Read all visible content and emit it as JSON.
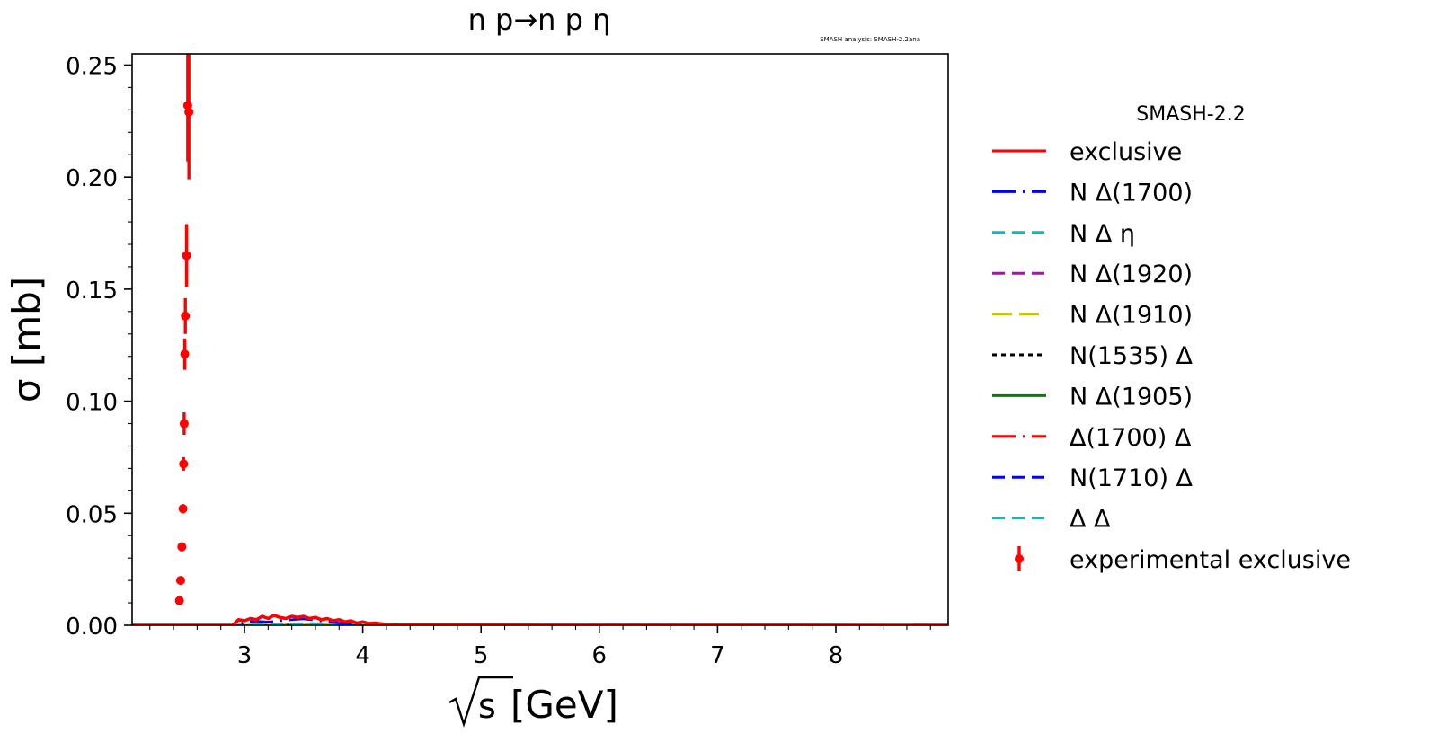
{
  "chart_data": {
    "type": "line",
    "title": "n p→n p η",
    "watermark": "SMASH analysis: SMASH-2.2ana",
    "xlabel_sqrt": "s",
    "xlabel_unit": "[GeV]",
    "ylabel": "σ [mb]",
    "xlim": [
      2.05,
      8.95
    ],
    "ylim": [
      0.0,
      0.255
    ],
    "x_ticks": [
      3,
      4,
      5,
      6,
      7,
      8
    ],
    "x_tick_labels": [
      "3",
      "4",
      "5",
      "6",
      "7",
      "8"
    ],
    "y_ticks": [
      0.0,
      0.05,
      0.1,
      0.15,
      0.2,
      0.25
    ],
    "y_tick_labels": [
      "0.00",
      "0.05",
      "0.10",
      "0.15",
      "0.20",
      "0.25"
    ],
    "legend": {
      "title": "SMASH-2.2",
      "placement": "outside-right"
    },
    "series": [
      {
        "name": "exclusive",
        "color": "#ff0000",
        "dash": "solid",
        "x": [
          2.05,
          2.9,
          2.95,
          3.0,
          3.05,
          3.1,
          3.15,
          3.2,
          3.25,
          3.3,
          3.35,
          3.4,
          3.45,
          3.5,
          3.55,
          3.6,
          3.65,
          3.7,
          3.75,
          3.8,
          3.85,
          3.9,
          3.95,
          4.0,
          4.05,
          4.1,
          4.2,
          4.3,
          8.95
        ],
        "y": [
          0.0,
          0.0,
          0.0025,
          0.002,
          0.003,
          0.0025,
          0.004,
          0.003,
          0.0045,
          0.0035,
          0.003,
          0.004,
          0.0035,
          0.004,
          0.003,
          0.0035,
          0.0025,
          0.003,
          0.002,
          0.0025,
          0.0015,
          0.002,
          0.001,
          0.0015,
          0.0008,
          0.001,
          0.0004,
          0.0001,
          0.0
        ]
      },
      {
        "name": "N Δ(1700)",
        "color": "#0000ff",
        "dash": "long-dash-dot",
        "x": [
          2.05,
          2.95,
          3.0,
          3.1,
          3.2,
          3.3,
          3.4,
          3.5,
          3.6,
          3.7,
          3.8,
          3.9,
          4.0,
          4.1,
          8.95
        ],
        "y": [
          0.0,
          0.0,
          0.0015,
          0.0018,
          0.0015,
          0.002,
          0.0025,
          0.0028,
          0.0022,
          0.0015,
          0.001,
          0.0006,
          0.0003,
          0.0,
          0.0
        ]
      },
      {
        "name": "N Δ η",
        "color": "#00bfbf",
        "dash": "dashed",
        "x": [
          2.05,
          3.0,
          3.3,
          3.6,
          3.9,
          4.5,
          8.95
        ],
        "y": [
          0.0,
          0.0,
          0.0006,
          0.0008,
          0.0005,
          0.0002,
          0.0
        ]
      },
      {
        "name": "N Δ(1920)",
        "color": "#bf00bf",
        "dash": "dashed",
        "x": [
          2.05,
          3.0,
          3.3,
          3.6,
          3.9,
          4.5,
          8.95
        ],
        "y": [
          0.0,
          0.0,
          0.0004,
          0.0006,
          0.0004,
          0.0001,
          0.0
        ]
      },
      {
        "name": "N Δ(1910)",
        "color": "#bfbf00",
        "dash": "long-dash",
        "x": [
          2.05,
          3.0,
          3.5,
          4.0,
          8.95
        ],
        "y": [
          0.0,
          0.0,
          0.0003,
          0.0001,
          0.0
        ]
      },
      {
        "name": "N(1535) Δ",
        "color": "#000000",
        "dash": "dotted",
        "x": [
          2.05,
          3.0,
          3.5,
          4.0,
          8.95
        ],
        "y": [
          0.0,
          0.0,
          0.0002,
          0.0001,
          0.0
        ]
      },
      {
        "name": "N Δ(1905)",
        "color": "#008000",
        "dash": "solid",
        "x": [
          2.05,
          3.0,
          3.5,
          4.0,
          8.95
        ],
        "y": [
          0.0,
          0.0,
          0.0002,
          0.0001,
          0.0
        ]
      },
      {
        "name": "Δ(1700) Δ",
        "color": "#ff0000",
        "dash": "long-dash-dot",
        "x": [
          2.05,
          3.0,
          3.5,
          4.0,
          8.95
        ],
        "y": [
          0.0,
          0.0,
          0.0002,
          0.0001,
          0.0
        ]
      },
      {
        "name": "N(1710) Δ",
        "color": "#0000ff",
        "dash": "dashed",
        "x": [
          2.05,
          3.0,
          3.5,
          4.0,
          8.95
        ],
        "y": [
          0.0,
          0.0,
          0.0001,
          0.0,
          0.0
        ]
      },
      {
        "name": "Δ Δ",
        "color": "#00bfbf",
        "dash": "dashed",
        "x": [
          2.05,
          3.0,
          3.5,
          4.0,
          8.95
        ],
        "y": [
          0.0,
          0.0,
          0.0001,
          0.0,
          0.0
        ]
      }
    ],
    "experimental": {
      "name": "experimental exclusive",
      "color": "#ff0000",
      "points": [
        {
          "x": 2.45,
          "y": 0.011,
          "err": 0.0012
        },
        {
          "x": 2.46,
          "y": 0.02,
          "err": 0.0015
        },
        {
          "x": 2.47,
          "y": 0.035,
          "err": 0.002
        },
        {
          "x": 2.48,
          "y": 0.052,
          "err": 0.002
        },
        {
          "x": 2.485,
          "y": 0.072,
          "err": 0.003
        },
        {
          "x": 2.49,
          "y": 0.09,
          "err": 0.005
        },
        {
          "x": 2.495,
          "y": 0.121,
          "err": 0.007
        },
        {
          "x": 2.5,
          "y": 0.138,
          "err": 0.008
        },
        {
          "x": 2.51,
          "y": 0.165,
          "err": 0.014
        },
        {
          "x": 2.52,
          "y": 0.232,
          "err": 0.025
        },
        {
          "x": 2.53,
          "y": 0.229,
          "err": 0.03
        }
      ]
    }
  }
}
